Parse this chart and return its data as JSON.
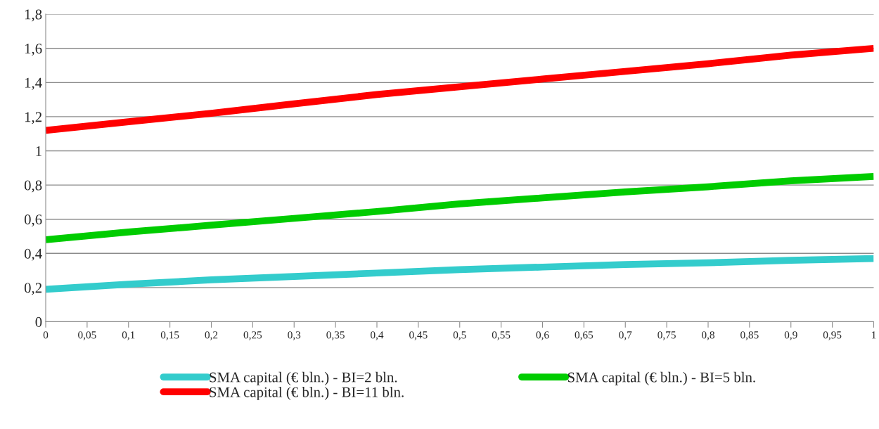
{
  "chart_data": {
    "type": "line",
    "x": [
      0,
      0.1,
      0.2,
      0.3,
      0.4,
      0.5,
      0.6,
      0.7,
      0.8,
      0.9,
      1
    ],
    "series": [
      {
        "name": "SMA capital (€ bln.) - BI=2 bln.",
        "color": "#33cccc",
        "values": [
          0.19,
          0.22,
          0.245,
          0.265,
          0.285,
          0.305,
          0.32,
          0.335,
          0.345,
          0.36,
          0.37
        ]
      },
      {
        "name": "SMA capital (€ bln.) - BI=5 bln.",
        "color": "#00cc00",
        "values": [
          0.48,
          0.525,
          0.565,
          0.605,
          0.645,
          0.69,
          0.725,
          0.76,
          0.79,
          0.825,
          0.85
        ]
      },
      {
        "name": "SMA capital (€ bln.) - BI=11 bln.",
        "color": "#ff0000",
        "values": [
          1.12,
          1.17,
          1.22,
          1.275,
          1.33,
          1.375,
          1.42,
          1.465,
          1.51,
          1.56,
          1.6
        ]
      }
    ],
    "xlim": [
      0,
      1
    ],
    "xticks": [
      0,
      {
        "value": 0.05,
        "label": "0,05"
      },
      {
        "value": 0.1,
        "label": "0,1"
      },
      {
        "value": 0.15,
        "label": "0,15"
      },
      {
        "value": 0.2,
        "label": "0,2"
      },
      {
        "value": 0.25,
        "label": "0,25"
      },
      {
        "value": 0.3,
        "label": "0,3"
      },
      {
        "value": 0.35,
        "label": "0,35"
      },
      {
        "value": 0.4,
        "label": "0,4"
      },
      {
        "value": 0.45,
        "label": "0,45"
      },
      {
        "value": 0.5,
        "label": "0,5"
      },
      {
        "value": 0.55,
        "label": "0,55"
      },
      {
        "value": 0.6,
        "label": "0,6"
      },
      {
        "value": 0.65,
        "label": "0,65"
      },
      {
        "value": 0.7,
        "label": "0,7"
      },
      {
        "value": 0.75,
        "label": "0,75"
      },
      {
        "value": 0.8,
        "label": "0,8"
      },
      {
        "value": 0.85,
        "label": "0,85"
      },
      {
        "value": 0.9,
        "label": "0,9"
      },
      {
        "value": 0.95,
        "label": "0,95"
      },
      1
    ],
    "ylim": [
      0,
      1.8
    ],
    "yticks": [
      0,
      {
        "value": 0.2,
        "label": "0,2"
      },
      {
        "value": 0.4,
        "label": "0,4"
      },
      {
        "value": 0.6,
        "label": "0,6"
      },
      {
        "value": 0.8,
        "label": "0,8"
      },
      1,
      {
        "value": 1.2,
        "label": "1,2"
      },
      {
        "value": 1.4,
        "label": "1,4"
      },
      {
        "value": 1.6,
        "label": "1,6"
      },
      {
        "value": 1.8,
        "label": "1,8"
      }
    ],
    "grid": "y",
    "legend": "bottom",
    "marker": "none",
    "line_style": "solid"
  }
}
